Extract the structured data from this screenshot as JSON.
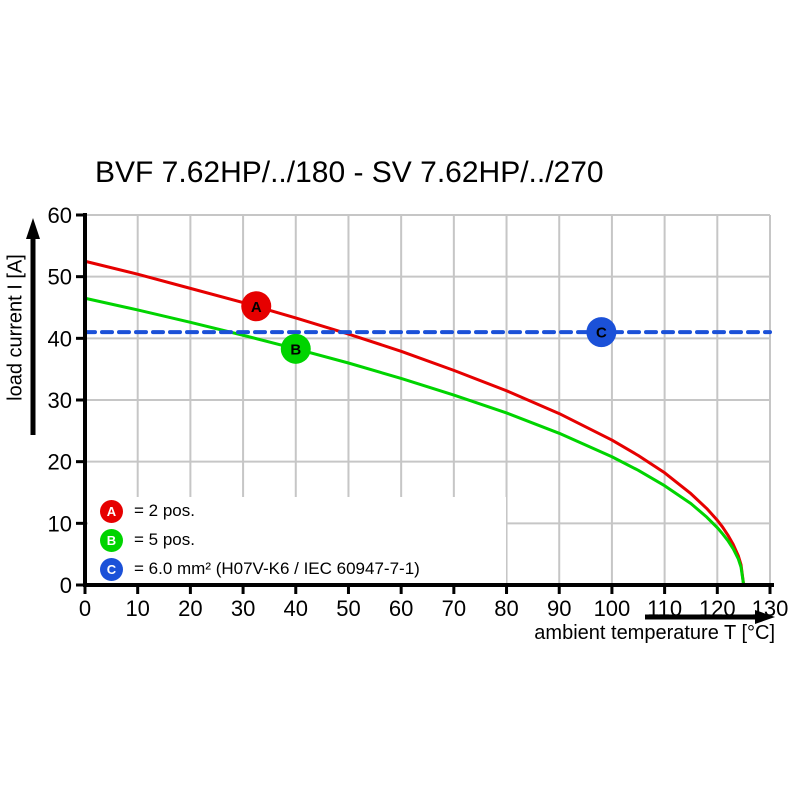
{
  "chart_data": {
    "type": "line",
    "title": "BVF 7.62HP/../180 - SV 7.62HP/../270",
    "xlabel": "ambient temperature T [°C]",
    "ylabel": "load current I [A]",
    "xlim": [
      0,
      130
    ],
    "ylim": [
      0,
      60
    ],
    "xticks": [
      0,
      10,
      20,
      30,
      40,
      50,
      60,
      70,
      80,
      90,
      100,
      110,
      120,
      130
    ],
    "yticks": [
      0,
      10,
      20,
      30,
      40,
      50,
      60
    ],
    "grid": true,
    "grid_color": "#c6c6c6",
    "axis_color": "#000000",
    "series": [
      {
        "name": "2 pos.",
        "letter": "A",
        "color": "#e60000",
        "style": "solid",
        "points": [
          [
            0,
            52.5
          ],
          [
            10,
            50.4
          ],
          [
            20,
            48.1
          ],
          [
            30,
            45.8
          ],
          [
            40,
            43.3
          ],
          [
            50,
            40.7
          ],
          [
            60,
            37.9
          ],
          [
            70,
            34.8
          ],
          [
            80,
            31.5
          ],
          [
            90,
            27.8
          ],
          [
            100,
            23.5
          ],
          [
            105,
            21.0
          ],
          [
            110,
            18.2
          ],
          [
            115,
            14.8
          ],
          [
            118,
            12.4
          ],
          [
            120,
            10.5
          ],
          [
            121,
            9.4
          ],
          [
            122,
            8.1
          ],
          [
            123,
            6.6
          ],
          [
            124,
            4.7
          ],
          [
            124.5,
            3.3
          ],
          [
            125,
            0
          ]
        ]
      },
      {
        "name": "5 pos.",
        "letter": "B",
        "color": "#00d400",
        "style": "solid",
        "points": [
          [
            0,
            46.5
          ],
          [
            10,
            44.6
          ],
          [
            20,
            42.6
          ],
          [
            30,
            40.5
          ],
          [
            40,
            38.3
          ],
          [
            50,
            36.0
          ],
          [
            60,
            33.5
          ],
          [
            70,
            30.8
          ],
          [
            80,
            27.9
          ],
          [
            90,
            24.6
          ],
          [
            100,
            20.8
          ],
          [
            105,
            18.6
          ],
          [
            110,
            16.1
          ],
          [
            115,
            13.2
          ],
          [
            118,
            11.0
          ],
          [
            120,
            9.3
          ],
          [
            121,
            8.3
          ],
          [
            122,
            7.2
          ],
          [
            123,
            5.9
          ],
          [
            124,
            4.2
          ],
          [
            124.5,
            2.9
          ],
          [
            125,
            0
          ]
        ]
      },
      {
        "name": "6.0 mm² (H07V-K6 / IEC 60947-7-1)",
        "letter": "C",
        "color": "#1b51d8",
        "style": "dashed",
        "points": [
          [
            0,
            41
          ],
          [
            130,
            41
          ]
        ]
      }
    ],
    "markers": [
      {
        "letter": "A",
        "x": 32.5,
        "y": 45.2,
        "color": "#e60000"
      },
      {
        "letter": "B",
        "x": 40,
        "y": 38.3,
        "color": "#00d400"
      },
      {
        "letter": "C",
        "x": 98,
        "y": 41,
        "color": "#1b51d8"
      }
    ],
    "legend_position": "bottom-left-inside"
  },
  "legend": {
    "items": [
      {
        "letter": "A",
        "color": "#e60000",
        "label": "= 2 pos."
      },
      {
        "letter": "B",
        "color": "#00d400",
        "label": "= 5 pos."
      },
      {
        "letter": "C",
        "color": "#1b51d8",
        "label": "= 6.0 mm² (H07V-K6 / IEC 60947-7-1)"
      }
    ]
  }
}
